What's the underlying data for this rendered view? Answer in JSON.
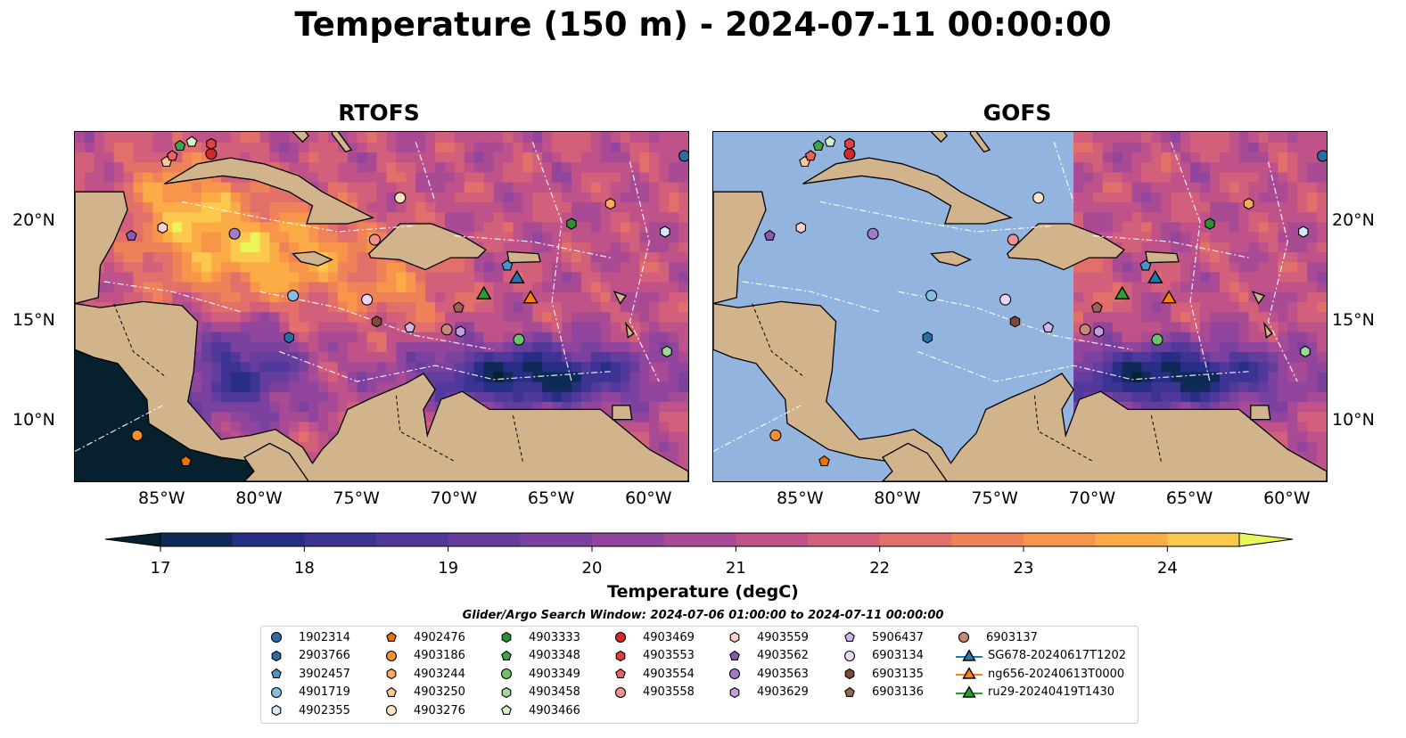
{
  "title": "Temperature (150 m) - 2024-07-11 00:00:00",
  "panels": [
    {
      "title": "RTOFS",
      "coverage": "full"
    },
    {
      "title": "GOFS",
      "coverage": "east-of-71W"
    }
  ],
  "map": {
    "lon_range": [
      -89.5,
      -58.0
    ],
    "lat_range": [
      7.0,
      24.5
    ],
    "x_ticks": [
      "85°W",
      "80°W",
      "75°W",
      "70°W",
      "65°W",
      "60°W"
    ],
    "y_ticks": [
      "10°N",
      "15°N",
      "20°N"
    ],
    "land_color": "#d2b48c",
    "ocean_color": "#94b4e0"
  },
  "colorbar": {
    "label": "Temperature (degC)",
    "ticks": [
      "17",
      "18",
      "19",
      "20",
      "21",
      "22",
      "23",
      "24"
    ],
    "range": [
      17,
      24.5
    ],
    "colors": [
      "#07202e",
      "#0e2a57",
      "#262e86",
      "#3c3393",
      "#51389b",
      "#653d9d",
      "#7b419e",
      "#92459c",
      "#a94a95",
      "#bf5389",
      "#d3607b",
      "#e36f6a",
      "#ef8258",
      "#f7964b",
      "#fbac47",
      "#fcc84e",
      "#e9f65a"
    ]
  },
  "search_window": "Glider/Argo Search Window: 2024-07-06 01:00:00 to 2024-07-11 00:00:00",
  "legend": [
    {
      "label": "1902314",
      "marker": "circle",
      "color": "#2a6ea6"
    },
    {
      "label": "2903766",
      "marker": "hexagon",
      "color": "#2a6ea6"
    },
    {
      "label": "3902457",
      "marker": "pentagon",
      "color": "#4b94c8"
    },
    {
      "label": "4901719",
      "marker": "circle",
      "color": "#86bde3"
    },
    {
      "label": "4902355",
      "marker": "hexagon",
      "color": "#d4e8f5"
    },
    {
      "label": "4902476",
      "marker": "pentagon",
      "color": "#ef7000"
    },
    {
      "label": "4903186",
      "marker": "circle",
      "color": "#f58e35"
    },
    {
      "label": "4903244",
      "marker": "hexagon",
      "color": "#f8ab5e"
    },
    {
      "label": "4903250",
      "marker": "pentagon",
      "color": "#fbc892"
    },
    {
      "label": "4903276",
      "marker": "circle",
      "color": "#fde2c4"
    },
    {
      "label": "4903333",
      "marker": "hexagon",
      "color": "#2a9330"
    },
    {
      "label": "4903348",
      "marker": "pentagon",
      "color": "#3aa84a"
    },
    {
      "label": "4903349",
      "marker": "circle",
      "color": "#6bc36a"
    },
    {
      "label": "4903458",
      "marker": "hexagon",
      "color": "#9fd99a"
    },
    {
      "label": "4903466",
      "marker": "pentagon",
      "color": "#d3f0cd"
    },
    {
      "label": "4903469",
      "marker": "circle",
      "color": "#d62728"
    },
    {
      "label": "4903553",
      "marker": "hexagon",
      "color": "#e04040"
    },
    {
      "label": "4903554",
      "marker": "pentagon",
      "color": "#ea6262"
    },
    {
      "label": "4903558",
      "marker": "circle",
      "color": "#f2918f"
    },
    {
      "label": "4903559",
      "marker": "hexagon",
      "color": "#fbd2d0"
    },
    {
      "label": "4903562",
      "marker": "pentagon",
      "color": "#8a5ab0"
    },
    {
      "label": "4903563",
      "marker": "circle",
      "color": "#a47bc8"
    },
    {
      "label": "4903629",
      "marker": "hexagon",
      "color": "#bf9fdc"
    },
    {
      "label": "5906437",
      "marker": "pentagon",
      "color": "#d4b4ee"
    },
    {
      "label": "6903134",
      "marker": "circle",
      "color": "#ecd6f8"
    },
    {
      "label": "6903135",
      "marker": "hexagon",
      "color": "#7b4a38"
    },
    {
      "label": "6903136",
      "marker": "pentagon",
      "color": "#9b6454"
    },
    {
      "label": "6903137",
      "marker": "circle",
      "color": "#c48a78"
    },
    {
      "label": "SG678-20240617T1202",
      "marker": "triangle-line",
      "color": "#1f77b4"
    },
    {
      "label": "ng656-20240613T0000",
      "marker": "triangle-line",
      "color": "#ff7f0e"
    },
    {
      "label": "ru29-20240419T1430",
      "marker": "triangle-line",
      "color": "#2ca02c"
    }
  ],
  "floats": [
    {
      "id": "1902314",
      "lon": -58.2,
      "lat": 23.3
    },
    {
      "id": "2903766",
      "lon": -78.5,
      "lat": 14.2
    },
    {
      "id": "3902457",
      "lon": -67.3,
      "lat": 17.8
    },
    {
      "id": "4901719",
      "lon": -78.3,
      "lat": 16.3
    },
    {
      "id": "4902355",
      "lon": -59.2,
      "lat": 19.5
    },
    {
      "id": "4902476",
      "lon": -83.8,
      "lat": 8.0
    },
    {
      "id": "4903186",
      "lon": -86.3,
      "lat": 9.3
    },
    {
      "id": "4903244",
      "lon": -62.0,
      "lat": 20.9
    },
    {
      "id": "4903250",
      "lon": -84.8,
      "lat": 23.0
    },
    {
      "id": "4903276",
      "lon": -72.8,
      "lat": 21.2
    },
    {
      "id": "4903333",
      "lon": -64.0,
      "lat": 19.9
    },
    {
      "id": "4903348",
      "lon": -84.1,
      "lat": 23.8
    },
    {
      "id": "4903349",
      "lon": -66.7,
      "lat": 14.1
    },
    {
      "id": "4903458",
      "lon": -59.1,
      "lat": 13.5
    },
    {
      "id": "4903466",
      "lon": -83.5,
      "lat": 24.0
    },
    {
      "id": "4903469",
      "lon": -82.5,
      "lat": 23.4
    },
    {
      "id": "4903553",
      "lon": -82.5,
      "lat": 23.9
    },
    {
      "id": "4903554",
      "lon": -84.5,
      "lat": 23.3
    },
    {
      "id": "4903558",
      "lon": -74.1,
      "lat": 19.1
    },
    {
      "id": "4903559",
      "lon": -85.0,
      "lat": 19.7
    },
    {
      "id": "4903562",
      "lon": -86.6,
      "lat": 19.3
    },
    {
      "id": "4903563",
      "lon": -81.3,
      "lat": 19.4
    },
    {
      "id": "4903629",
      "lon": -69.7,
      "lat": 14.5
    },
    {
      "id": "5906437",
      "lon": -72.3,
      "lat": 14.7
    },
    {
      "id": "6903134",
      "lon": -74.5,
      "lat": 16.1
    },
    {
      "id": "6903135",
      "lon": -74.0,
      "lat": 15.0
    },
    {
      "id": "6903136",
      "lon": -69.8,
      "lat": 15.7
    },
    {
      "id": "6903137",
      "lon": -70.4,
      "lat": 14.6
    }
  ],
  "gliders": [
    {
      "id": "SG678-20240617T1202",
      "lon": -66.8,
      "lat": 17.2
    },
    {
      "id": "ng656-20240613T0000",
      "lon": -66.1,
      "lat": 16.2
    },
    {
      "id": "ru29-20240419T1430",
      "lon": -68.5,
      "lat": 16.4
    }
  ]
}
